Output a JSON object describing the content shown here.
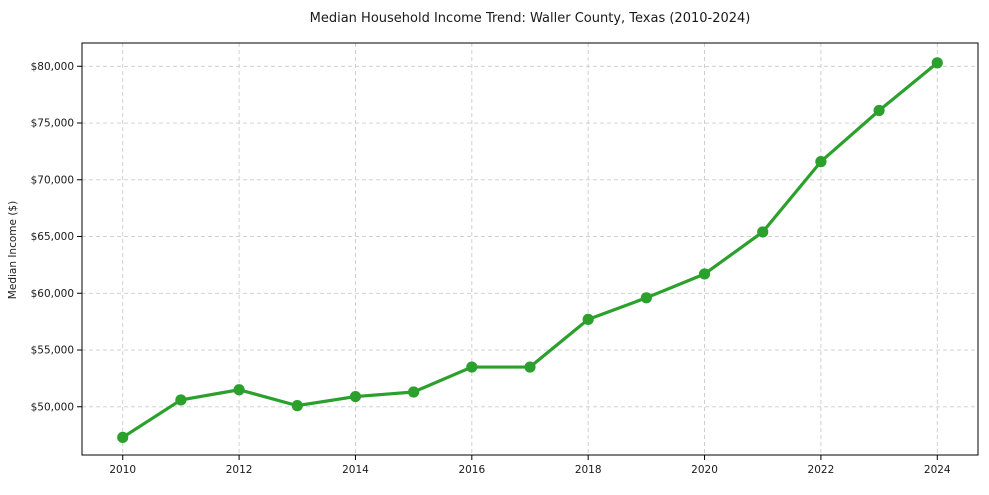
{
  "chart_data": {
    "type": "line",
    "title": "Median Household Income Trend: Waller County, Texas (2010-2024)",
    "xlabel": "",
    "ylabel": "Median Income ($)",
    "x": [
      2010,
      2011,
      2012,
      2013,
      2014,
      2015,
      2016,
      2017,
      2018,
      2019,
      2020,
      2021,
      2022,
      2023,
      2024
    ],
    "values": [
      47300,
      50600,
      51500,
      50100,
      50900,
      51300,
      53500,
      53500,
      57700,
      59600,
      61700,
      65400,
      71600,
      76100,
      80300
    ],
    "x_ticks": {
      "values": [
        2010,
        2012,
        2014,
        2016,
        2018,
        2020,
        2022,
        2024
      ],
      "labels": [
        "2010",
        "2012",
        "2014",
        "2016",
        "2018",
        "2020",
        "2022",
        "2024"
      ]
    },
    "y_ticks": {
      "values": [
        50000,
        55000,
        60000,
        65000,
        70000,
        75000,
        80000
      ],
      "labels": [
        "$50,000",
        "$55,000",
        "$60,000",
        "$65,000",
        "$70,000",
        "$75,000",
        "$80,000"
      ]
    },
    "xlim": [
      2009.3,
      2024.7
    ],
    "ylim": [
      45750,
      82050
    ],
    "grid": true,
    "grid_style": "dashed",
    "legend_position": "none",
    "line_color": "#2ca02c",
    "marker": "circle",
    "grid_color": "#cccccc",
    "axis_color": "#000000",
    "text_color": "#1a1a1a",
    "background": "#ffffff"
  }
}
